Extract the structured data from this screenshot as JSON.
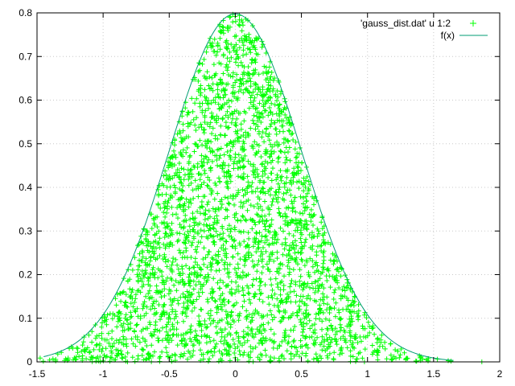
{
  "chart_data": {
    "type": "scatter",
    "title": "",
    "xlabel": "",
    "ylabel": "",
    "xlim": [
      -1.5,
      2
    ],
    "ylim": [
      0,
      0.8
    ],
    "xticks": [
      -1.5,
      -1,
      -0.5,
      0,
      0.5,
      1,
      1.5,
      2
    ],
    "yticks": [
      0,
      0.1,
      0.2,
      0.3,
      0.4,
      0.5,
      0.6,
      0.7,
      0.8
    ],
    "xtick_labels": [
      "-1.5",
      "-1",
      "-0.5",
      "0",
      "0.5",
      "1",
      "1.5",
      "2"
    ],
    "ytick_labels": [
      "0",
      "0.1",
      "0.2",
      "0.3",
      "0.4",
      "0.5",
      "0.6",
      "0.7",
      "0.8"
    ],
    "grid": true,
    "legend_position": "top-right",
    "series": [
      {
        "name": "'gauss_dist.dat' u 1:2",
        "kind": "points",
        "marker": "plus",
        "color": "#00ff00",
        "note_points": "samples uniformly distributed under f(x); x normal with mean 0, sd 0.5",
        "n_points": 3000,
        "mean": 0,
        "sigma": 0.5
      },
      {
        "name": "f(x)",
        "kind": "line",
        "color": "#009e73",
        "function": "gaussian",
        "mean": 0,
        "sigma": 0.5,
        "x_range": [
          -1.45,
          1.65
        ]
      }
    ]
  }
}
